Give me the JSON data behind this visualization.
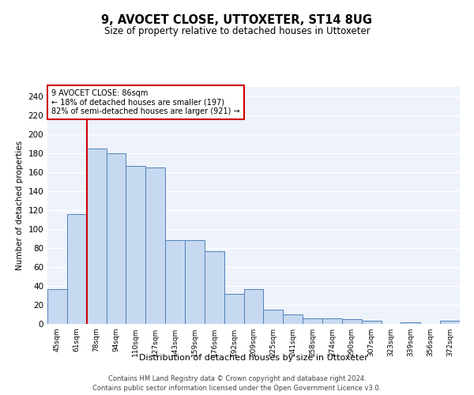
{
  "title": "9, AVOCET CLOSE, UTTOXETER, ST14 8UG",
  "subtitle": "Size of property relative to detached houses in Uttoxeter",
  "xlabel": "Distribution of detached houses by size in Uttoxeter",
  "ylabel": "Number of detached properties",
  "categories": [
    "45sqm",
    "61sqm",
    "78sqm",
    "94sqm",
    "110sqm",
    "127sqm",
    "143sqm",
    "159sqm",
    "176sqm",
    "192sqm",
    "209sqm",
    "225sqm",
    "241sqm",
    "258sqm",
    "274sqm",
    "290sqm",
    "307sqm",
    "323sqm",
    "339sqm",
    "356sqm",
    "372sqm"
  ],
  "values": [
    37,
    116,
    185,
    180,
    167,
    165,
    88,
    88,
    77,
    32,
    37,
    15,
    10,
    6,
    6,
    5,
    3,
    0,
    2,
    0,
    3
  ],
  "bar_color": "#c6d9f0",
  "bar_edge_color": "#4f81bd",
  "annotation_text_line1": "9 AVOCET CLOSE: 86sqm",
  "annotation_text_line2": "← 18% of detached houses are smaller (197)",
  "annotation_text_line3": "82% of semi-detached houses are larger (921) →",
  "annotation_box_color": "#ffffff",
  "annotation_box_edge_color": "#cc0000",
  "vline_color": "#cc0000",
  "vline_x_index": 2,
  "ylim": [
    0,
    250
  ],
  "yticks": [
    0,
    20,
    40,
    60,
    80,
    100,
    120,
    140,
    160,
    180,
    200,
    220,
    240
  ],
  "background_color": "#eef2fa",
  "grid_color": "#ffffff",
  "footer_line1": "Contains HM Land Registry data © Crown copyright and database right 2024.",
  "footer_line2": "Contains public sector information licensed under the Open Government Licence v3.0."
}
